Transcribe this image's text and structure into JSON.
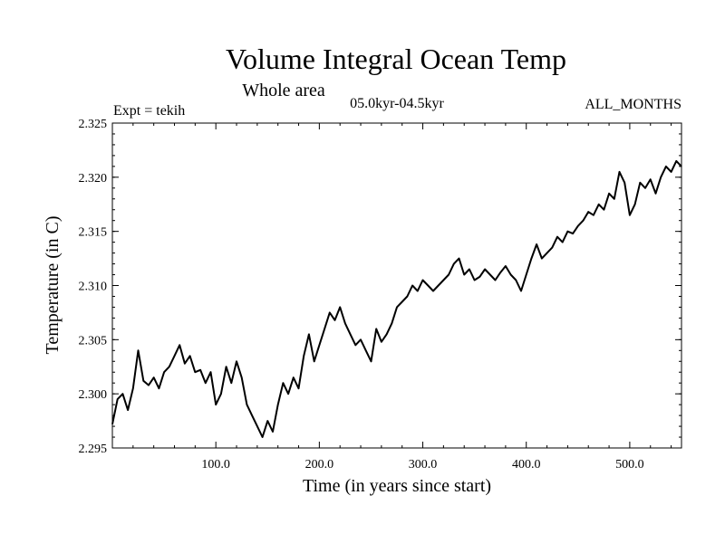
{
  "chart_data": {
    "type": "line",
    "title": "Volume Integral Ocean Temp",
    "subtitle": "Whole area",
    "period": "05.0kyr-04.5kyr",
    "experiment": "Expt = tekih",
    "months": "ALL_MONTHS",
    "xlabel": "Time (in years since start)",
    "ylabel": "Temperature (in C)",
    "xlim": [
      0,
      550
    ],
    "ylim": [
      2.295,
      2.325
    ],
    "x_ticks": [
      100,
      200,
      300,
      400,
      500
    ],
    "x_tick_labels": [
      "100.0",
      "200.0",
      "300.0",
      "400.0",
      "500.0"
    ],
    "y_ticks": [
      2.295,
      2.3,
      2.305,
      2.31,
      2.315,
      2.32,
      2.325
    ],
    "y_tick_labels": [
      "2.295",
      "2.300",
      "2.305",
      "2.310",
      "2.315",
      "2.320",
      "2.325"
    ],
    "series": [
      {
        "name": "Volume integral ocean temperature",
        "x": [
          0,
          5,
          10,
          15,
          20,
          25,
          30,
          35,
          40,
          45,
          50,
          55,
          60,
          65,
          70,
          75,
          80,
          85,
          90,
          95,
          100,
          105,
          110,
          115,
          120,
          125,
          130,
          135,
          140,
          145,
          150,
          155,
          160,
          165,
          170,
          175,
          180,
          185,
          190,
          195,
          200,
          205,
          210,
          215,
          220,
          225,
          230,
          235,
          240,
          245,
          250,
          255,
          260,
          265,
          270,
          275,
          280,
          285,
          290,
          295,
          300,
          305,
          310,
          315,
          320,
          325,
          330,
          335,
          340,
          345,
          350,
          355,
          360,
          365,
          370,
          375,
          380,
          385,
          390,
          395,
          400,
          405,
          410,
          415,
          420,
          425,
          430,
          435,
          440,
          445,
          450,
          455,
          460,
          465,
          470,
          475,
          480,
          485,
          490,
          495,
          500,
          505,
          510,
          515,
          520,
          525,
          530,
          535,
          540,
          545,
          550
        ],
        "values": [
          2.2972,
          2.2995,
          2.3,
          2.2985,
          2.3005,
          2.304,
          2.3012,
          2.3008,
          2.3015,
          2.3005,
          2.302,
          2.3025,
          2.3035,
          2.3045,
          2.3028,
          2.3035,
          2.302,
          2.3022,
          2.301,
          2.302,
          2.299,
          2.3,
          2.3025,
          2.301,
          2.303,
          2.3015,
          2.299,
          2.298,
          2.297,
          2.296,
          2.2975,
          2.2965,
          2.299,
          2.301,
          2.3,
          2.3015,
          2.3005,
          2.3035,
          2.3055,
          2.303,
          2.3045,
          2.306,
          2.3075,
          2.3068,
          2.308,
          2.3065,
          2.3055,
          2.3045,
          2.305,
          2.304,
          2.303,
          2.306,
          2.3048,
          2.3055,
          2.3065,
          2.308,
          2.3085,
          2.309,
          2.31,
          2.3095,
          2.3105,
          2.31,
          2.3095,
          2.31,
          2.3105,
          2.311,
          2.312,
          2.3125,
          2.311,
          2.3115,
          2.3105,
          2.3108,
          2.3115,
          2.311,
          2.3105,
          2.3112,
          2.3118,
          2.311,
          2.3105,
          2.3095,
          2.311,
          2.3125,
          2.3138,
          2.3125,
          2.313,
          2.3135,
          2.3145,
          2.314,
          2.315,
          2.3148,
          2.3155,
          2.316,
          2.3168,
          2.3165,
          2.3175,
          2.317,
          2.3185,
          2.318,
          2.3205,
          2.3195,
          2.3165,
          2.3175,
          2.3195,
          2.319,
          2.3198,
          2.3185,
          2.32,
          2.321,
          2.3205,
          2.3215,
          2.321
        ]
      }
    ]
  }
}
